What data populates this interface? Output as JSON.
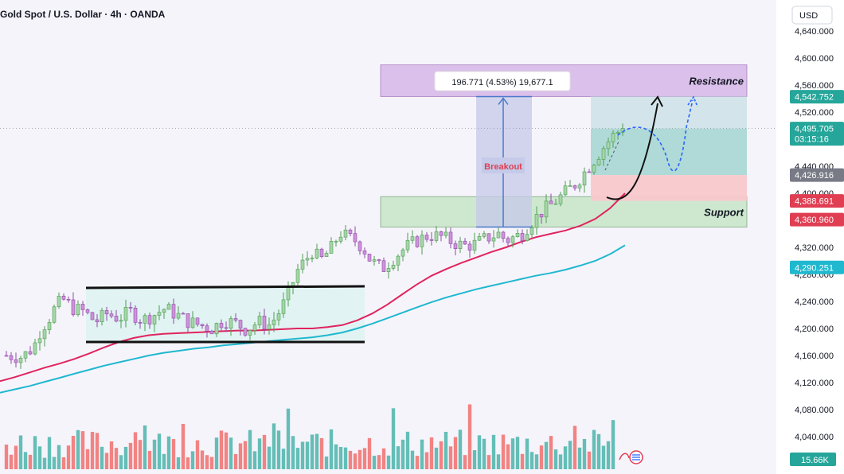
{
  "header": {
    "title": "Gold Spot / U.S. Dollar · 4h · OANDA",
    "currency": "USD"
  },
  "colors": {
    "bull": "#26a69a",
    "bear": "#ef5350",
    "candle_bull": "#a5d6a7",
    "candle_bear": "#ce93d8",
    "ma_fast": "#e0245e",
    "ma_slow": "#1fb8cf",
    "resistance": "#d6b8e8",
    "support": "#c8e6c9",
    "breakout": "#c5cae9",
    "target_zone": "#a7d7d3",
    "stop_zone": "#f8c8cc"
  },
  "chart_data": {
    "type": "candlestick",
    "title": "Gold Spot / U.S. Dollar · 4h · OANDA",
    "ylim": [
      4010,
      4650
    ],
    "y_ticks": [
      4640,
      4600,
      4560,
      4520,
      4440,
      4400,
      4320,
      4280,
      4240,
      4200,
      4160,
      4120,
      4080,
      4040
    ],
    "y_tick_labels": [
      "4,640.000",
      "4,600.000",
      "4,560.000",
      "4,520.000",
      "4,440.000",
      "4,400.000",
      "4,320.000",
      "4,280.000",
      "4,240.000",
      "4,200.000",
      "4,160.000",
      "4,120.000",
      "4,080.000",
      "4,040.000"
    ],
    "price_labels": [
      {
        "label": "4,542.752",
        "value": 4542.752,
        "color": "#26a69a"
      },
      {
        "label": "4,495.705",
        "sub": "03:15:16",
        "value": 4495.705,
        "color": "#26a69a"
      },
      {
        "label": "4,426.916",
        "value": 4426.916,
        "color": "#787b86"
      },
      {
        "label": "4,388.691",
        "value": 4388.691,
        "color": "#e03e52"
      },
      {
        "label": "4,360.960",
        "value": 4360.96,
        "color": "#e03e52"
      },
      {
        "label": "4,290.251",
        "value": 4290.251,
        "color": "#1fb8cf"
      }
    ],
    "last_price": 4495.705,
    "volume_label": "15.66K",
    "zones": [
      {
        "name": "Resistance",
        "label": "Resistance",
        "low": 4543,
        "high": 4590
      },
      {
        "name": "Support",
        "label": "Support",
        "low": 4350,
        "high": 4395
      }
    ],
    "consolidation": {
      "upper": 4260,
      "lower": 4180
    },
    "breakout": {
      "label": "Breakout",
      "from": 4350,
      "to": 4543,
      "measure": "196.771 (4.53%) 19,677.1"
    },
    "position": {
      "target": 4543,
      "entry": 4426.916,
      "stop": 4388.691
    },
    "ma_fast_values": [
      4122,
      4128,
      4135,
      4142,
      4148,
      4155,
      4163,
      4172,
      4180,
      4186,
      4190,
      4192,
      4193,
      4194,
      4195,
      4196,
      4197,
      4197,
      4198,
      4199,
      4200,
      4200,
      4202,
      4205,
      4212,
      4222,
      4235,
      4250,
      4265,
      4278,
      4288,
      4297,
      4305,
      4313,
      4320,
      4328,
      4335,
      4340,
      4345,
      4352,
      4362,
      4378,
      4400
    ],
    "ma_slow_values": [
      4105,
      4110,
      4115,
      4121,
      4127,
      4133,
      4139,
      4145,
      4150,
      4155,
      4160,
      4164,
      4167,
      4170,
      4172,
      4175,
      4177,
      4179,
      4181,
      4183,
      4185,
      4187,
      4190,
      4194,
      4200,
      4207,
      4215,
      4223,
      4231,
      4239,
      4246,
      4252,
      4258,
      4263,
      4268,
      4273,
      4278,
      4282,
      4287,
      4293,
      4300,
      4310,
      4323
    ]
  }
}
